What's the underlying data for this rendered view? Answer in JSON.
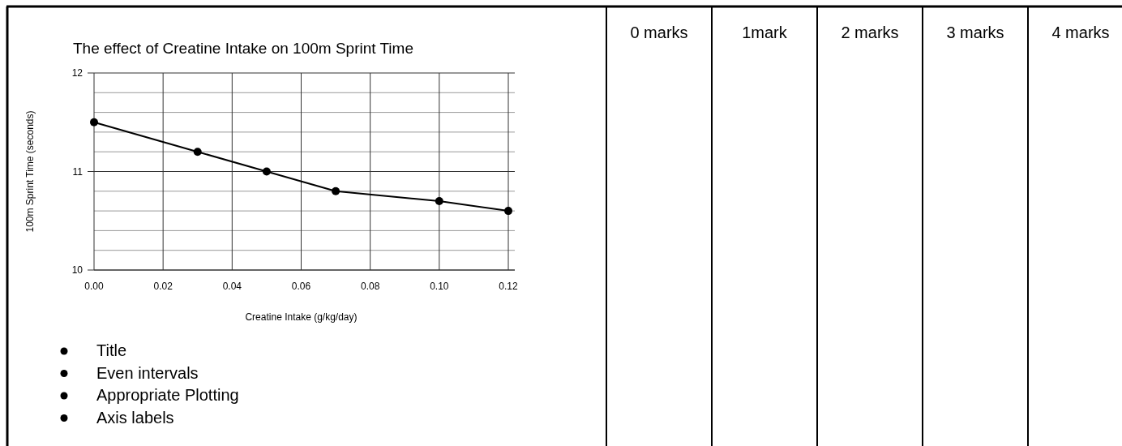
{
  "chart_data": [
    {
      "type": "line",
      "title": "The effect of Creatine Intake on 100m Sprint Time",
      "xlabel": "Creatine Intake (g/kg/day)",
      "ylabel": "100m Sprint Time (seconds)",
      "x": [
        0,
        0.03,
        0.05,
        0.07,
        0.1,
        0.12
      ],
      "series": [
        {
          "color": "#000000",
          "values": [
            11.5,
            11.2,
            11.0,
            10.8,
            10.7,
            10.6
          ]
        }
      ],
      "xlim": [
        0,
        0.12
      ],
      "xticks": [
        {
          "value": 0,
          "label": "0.00"
        },
        {
          "value": 0.02,
          "label": "0.02"
        },
        {
          "value": 0.04,
          "label": "0.04"
        },
        {
          "value": 0.06,
          "label": "0.06"
        },
        {
          "value": 0.08,
          "label": "0.08"
        },
        {
          "value": 0.1,
          "label": "0.10"
        },
        {
          "value": 0.12,
          "label": "0.12"
        }
      ],
      "ylim": [
        10,
        12
      ],
      "yticks": [
        10,
        {
          "value": 10.2,
          "label": null
        },
        {
          "value": 10.4,
          "label": null
        },
        {
          "value": 10.6,
          "label": null
        },
        {
          "value": 10.8,
          "label": null
        },
        11,
        {
          "value": 11.2,
          "label": null
        },
        {
          "value": 11.4,
          "label": null
        },
        {
          "value": 11.6,
          "label": null
        },
        {
          "value": 11.8,
          "label": null
        },
        12
      ],
      "grid": true,
      "marker": "circle",
      "line_style": "solid",
      "annotations": [
        "Title",
        "Even intervals",
        "Appropriate Plotting",
        "Axis labels"
      ]
    },
    {
      "type": "other",
      "annotations": [
        "0 marks",
        "1mark",
        "2 marks",
        "3 marks",
        "4 marks"
      ]
    }
  ]
}
